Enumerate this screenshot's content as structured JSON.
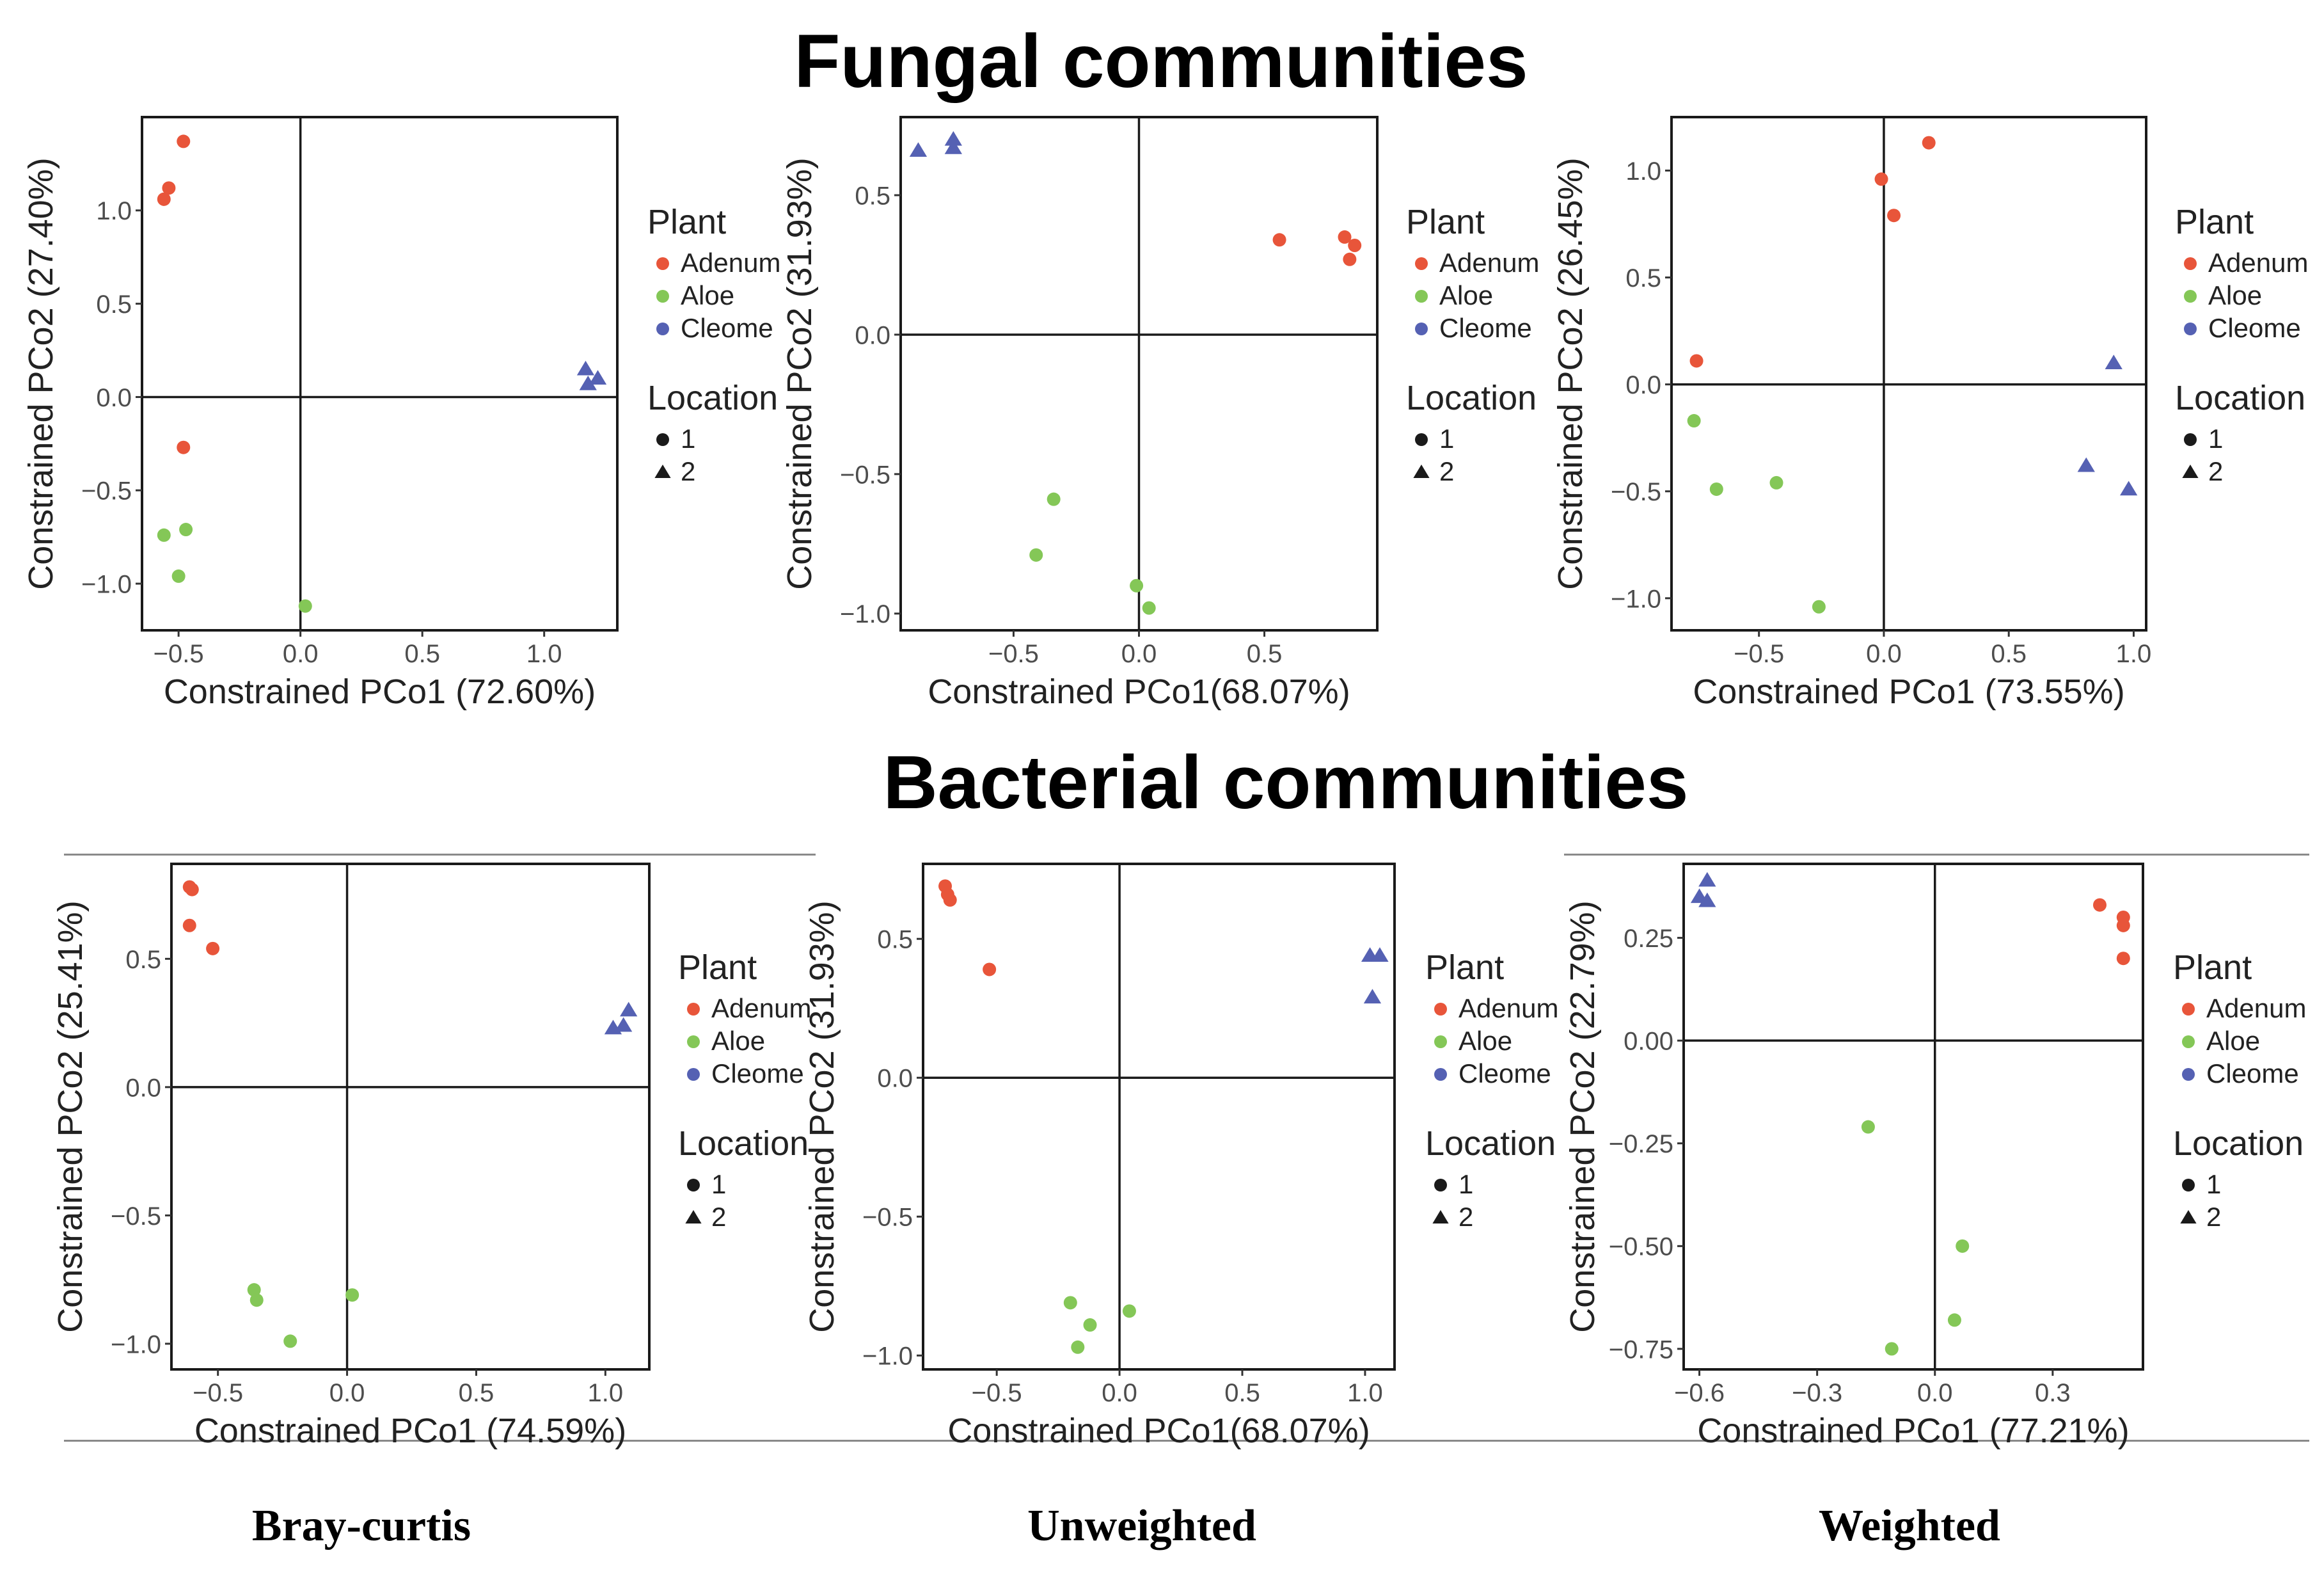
{
  "titles": {
    "fungal": "Fungal communities",
    "bacterial": "Bacterial communities"
  },
  "column_labels": [
    "Bray-curtis",
    "Unweighted",
    "Weighted"
  ],
  "legend": {
    "plant_title": "Plant",
    "plant_items": [
      {
        "label": "Adenum",
        "color": "#e8553a"
      },
      {
        "label": "Aloe",
        "color": "#84c757"
      },
      {
        "label": "Cleome",
        "color": "#5561b3"
      }
    ],
    "location_title": "Location",
    "location_items": [
      {
        "label": "1",
        "shape": "circle"
      },
      {
        "label": "2",
        "shape": "triangle"
      }
    ]
  },
  "colors": {
    "Adenum": "#e8553a",
    "Aloe": "#84c757",
    "Cleome": "#5561b3"
  },
  "chart_data": [
    {
      "type": "scatter",
      "title": "Fungal communities",
      "metric": "Bray-curtis",
      "xlabel": "Constrained PCo1 (72.60%)",
      "ylabel": "Constrained PCo2 (27.40%)",
      "xlim": [
        -0.65,
        1.3
      ],
      "ylim": [
        -1.25,
        1.5
      ],
      "xticks": [
        -0.5,
        0.0,
        0.5,
        1.0
      ],
      "xtick_labels": [
        "−0.5",
        "0.0",
        "0.5",
        "1.0"
      ],
      "yticks": [
        -1.0,
        -0.5,
        0.0,
        0.5,
        1.0
      ],
      "ytick_labels": [
        "−1.0",
        "−0.5",
        "0.0",
        "0.5",
        "1.0"
      ],
      "points": [
        {
          "x": -0.48,
          "y": 1.37,
          "plant": "Adenum",
          "location": 1
        },
        {
          "x": -0.54,
          "y": 1.12,
          "plant": "Adenum",
          "location": 1
        },
        {
          "x": -0.56,
          "y": 1.06,
          "plant": "Adenum",
          "location": 1
        },
        {
          "x": -0.48,
          "y": -0.27,
          "plant": "Adenum",
          "location": 1
        },
        {
          "x": -0.56,
          "y": -0.74,
          "plant": "Aloe",
          "location": 1
        },
        {
          "x": -0.47,
          "y": -0.71,
          "plant": "Aloe",
          "location": 1
        },
        {
          "x": -0.5,
          "y": -0.96,
          "plant": "Aloe",
          "location": 1
        },
        {
          "x": 0.02,
          "y": -1.12,
          "plant": "Aloe",
          "location": 1
        },
        {
          "x": 1.17,
          "y": 0.15,
          "plant": "Cleome",
          "location": 2
        },
        {
          "x": 1.22,
          "y": 0.1,
          "plant": "Cleome",
          "location": 2
        },
        {
          "x": 1.18,
          "y": 0.07,
          "plant": "Cleome",
          "location": 2
        }
      ]
    },
    {
      "type": "scatter",
      "title": "Fungal communities",
      "metric": "Unweighted",
      "xlabel": "Constrained PCo1(68.07%)",
      "ylabel": "Constrained PCo2 (31.93%)",
      "xlim": [
        -0.95,
        0.95
      ],
      "ylim": [
        -1.06,
        0.78
      ],
      "xticks": [
        -0.5,
        0.0,
        0.5
      ],
      "xtick_labels": [
        "−0.5",
        "0.0",
        "0.5"
      ],
      "yticks": [
        -1.0,
        -0.5,
        0.0,
        0.5
      ],
      "ytick_labels": [
        "−1.0",
        "−0.5",
        "0.0",
        "0.5"
      ],
      "points": [
        {
          "x": -0.88,
          "y": 0.66,
          "plant": "Cleome",
          "location": 2
        },
        {
          "x": -0.74,
          "y": 0.7,
          "plant": "Cleome",
          "location": 2
        },
        {
          "x": -0.74,
          "y": 0.67,
          "plant": "Cleome",
          "location": 2
        },
        {
          "x": 0.56,
          "y": 0.34,
          "plant": "Adenum",
          "location": 1
        },
        {
          "x": 0.82,
          "y": 0.35,
          "plant": "Adenum",
          "location": 1
        },
        {
          "x": 0.86,
          "y": 0.32,
          "plant": "Adenum",
          "location": 1
        },
        {
          "x": 0.84,
          "y": 0.27,
          "plant": "Adenum",
          "location": 1
        },
        {
          "x": -0.34,
          "y": -0.59,
          "plant": "Aloe",
          "location": 1
        },
        {
          "x": -0.41,
          "y": -0.79,
          "plant": "Aloe",
          "location": 1
        },
        {
          "x": -0.01,
          "y": -0.9,
          "plant": "Aloe",
          "location": 1
        },
        {
          "x": 0.04,
          "y": -0.98,
          "plant": "Aloe",
          "location": 1
        }
      ]
    },
    {
      "type": "scatter",
      "title": "Fungal communities",
      "metric": "Weighted",
      "xlabel": "Constrained PCo1 (73.55%)",
      "ylabel": "Constrained PCo2 (26.45%)",
      "xlim": [
        -0.85,
        1.05
      ],
      "ylim": [
        -1.15,
        1.25
      ],
      "xticks": [
        -0.5,
        0.0,
        0.5,
        1.0
      ],
      "xtick_labels": [
        "−0.5",
        "0.0",
        "0.5",
        "1.0"
      ],
      "yticks": [
        -1.0,
        -0.5,
        0.0,
        0.5,
        1.0
      ],
      "ytick_labels": [
        "−1.0",
        "−0.5",
        "0.0",
        "0.5",
        "1.0"
      ],
      "points": [
        {
          "x": 0.18,
          "y": 1.13,
          "plant": "Adenum",
          "location": 1
        },
        {
          "x": -0.01,
          "y": 0.96,
          "plant": "Adenum",
          "location": 1
        },
        {
          "x": 0.04,
          "y": 0.79,
          "plant": "Adenum",
          "location": 1
        },
        {
          "x": -0.75,
          "y": 0.11,
          "plant": "Adenum",
          "location": 1
        },
        {
          "x": -0.76,
          "y": -0.17,
          "plant": "Aloe",
          "location": 1
        },
        {
          "x": -0.67,
          "y": -0.49,
          "plant": "Aloe",
          "location": 1
        },
        {
          "x": -0.43,
          "y": -0.46,
          "plant": "Aloe",
          "location": 1
        },
        {
          "x": -0.26,
          "y": -1.04,
          "plant": "Aloe",
          "location": 1
        },
        {
          "x": 0.92,
          "y": 0.1,
          "plant": "Cleome",
          "location": 2
        },
        {
          "x": 0.81,
          "y": -0.38,
          "plant": "Cleome",
          "location": 2
        },
        {
          "x": 0.98,
          "y": -0.49,
          "plant": "Cleome",
          "location": 2
        }
      ]
    },
    {
      "type": "scatter",
      "title": "Bacterial communities",
      "metric": "Bray-curtis",
      "xlabel": "Constrained PCo1 (74.59%)",
      "ylabel": "Constrained PCo2 (25.41%)",
      "xlim": [
        -0.68,
        1.17
      ],
      "ylim": [
        -1.1,
        0.87
      ],
      "xticks": [
        -0.5,
        0.0,
        0.5,
        1.0
      ],
      "xtick_labels": [
        "−0.5",
        "0.0",
        "0.5",
        "1.0"
      ],
      "yticks": [
        -1.0,
        -0.5,
        0.0,
        0.5
      ],
      "ytick_labels": [
        "−1.0",
        "−0.5",
        "0.0",
        "0.5"
      ],
      "points": [
        {
          "x": -0.61,
          "y": 0.78,
          "plant": "Adenum",
          "location": 1
        },
        {
          "x": -0.6,
          "y": 0.77,
          "plant": "Adenum",
          "location": 1
        },
        {
          "x": -0.61,
          "y": 0.63,
          "plant": "Adenum",
          "location": 1
        },
        {
          "x": -0.52,
          "y": 0.54,
          "plant": "Adenum",
          "location": 1
        },
        {
          "x": 1.09,
          "y": 0.3,
          "plant": "Cleome",
          "location": 2
        },
        {
          "x": 1.03,
          "y": 0.23,
          "plant": "Cleome",
          "location": 2
        },
        {
          "x": 1.07,
          "y": 0.24,
          "plant": "Cleome",
          "location": 2
        },
        {
          "x": -0.36,
          "y": -0.79,
          "plant": "Aloe",
          "location": 1
        },
        {
          "x": -0.35,
          "y": -0.83,
          "plant": "Aloe",
          "location": 1
        },
        {
          "x": 0.02,
          "y": -0.81,
          "plant": "Aloe",
          "location": 1
        },
        {
          "x": -0.22,
          "y": -0.99,
          "plant": "Aloe",
          "location": 1
        }
      ]
    },
    {
      "type": "scatter",
      "title": "Bacterial communities",
      "metric": "Unweighted",
      "xlabel": "Constrained PCo1(68.07%)",
      "ylabel": "Constrained PCo2 (31.93%)",
      "xlim": [
        -0.8,
        1.12
      ],
      "ylim": [
        -1.05,
        0.77
      ],
      "xticks": [
        -0.5,
        0.0,
        0.5,
        1.0
      ],
      "xtick_labels": [
        "−0.5",
        "0.0",
        "0.5",
        "1.0"
      ],
      "yticks": [
        -1.0,
        -0.5,
        0.0,
        0.5
      ],
      "ytick_labels": [
        "−1.0",
        "−0.5",
        "0.0",
        "0.5"
      ],
      "points": [
        {
          "x": -0.71,
          "y": 0.69,
          "plant": "Adenum",
          "location": 1
        },
        {
          "x": -0.7,
          "y": 0.66,
          "plant": "Adenum",
          "location": 1
        },
        {
          "x": -0.69,
          "y": 0.64,
          "plant": "Adenum",
          "location": 1
        },
        {
          "x": -0.53,
          "y": 0.39,
          "plant": "Adenum",
          "location": 1
        },
        {
          "x": 1.02,
          "y": 0.44,
          "plant": "Cleome",
          "location": 2
        },
        {
          "x": 1.06,
          "y": 0.44,
          "plant": "Cleome",
          "location": 2
        },
        {
          "x": 1.03,
          "y": 0.29,
          "plant": "Cleome",
          "location": 2
        },
        {
          "x": -0.2,
          "y": -0.81,
          "plant": "Aloe",
          "location": 1
        },
        {
          "x": -0.12,
          "y": -0.89,
          "plant": "Aloe",
          "location": 1
        },
        {
          "x": -0.17,
          "y": -0.97,
          "plant": "Aloe",
          "location": 1
        },
        {
          "x": 0.04,
          "y": -0.84,
          "plant": "Aloe",
          "location": 1
        }
      ]
    },
    {
      "type": "scatter",
      "title": "Bacterial communities",
      "metric": "Weighted",
      "xlabel": "Constrained PCo1 (77.21%)",
      "ylabel": "Constrained PCo2 (22.79%)",
      "xlim": [
        -0.64,
        0.53
      ],
      "ylim": [
        -0.8,
        0.43
      ],
      "xticks": [
        -0.6,
        -0.3,
        0.0,
        0.3
      ],
      "xtick_labels": [
        "−0.6",
        "−0.3",
        "0.0",
        "0.3"
      ],
      "yticks": [
        -0.75,
        -0.5,
        -0.25,
        0.0,
        0.25
      ],
      "ytick_labels": [
        "−0.75",
        "−0.50",
        "−0.25",
        "0.00",
        "0.25"
      ],
      "points": [
        {
          "x": -0.58,
          "y": 0.39,
          "plant": "Cleome",
          "location": 2
        },
        {
          "x": -0.6,
          "y": 0.35,
          "plant": "Cleome",
          "location": 2
        },
        {
          "x": -0.58,
          "y": 0.34,
          "plant": "Cleome",
          "location": 2
        },
        {
          "x": 0.42,
          "y": 0.33,
          "plant": "Adenum",
          "location": 1
        },
        {
          "x": 0.48,
          "y": 0.3,
          "plant": "Adenum",
          "location": 1
        },
        {
          "x": 0.48,
          "y": 0.28,
          "plant": "Adenum",
          "location": 1
        },
        {
          "x": 0.48,
          "y": 0.2,
          "plant": "Adenum",
          "location": 1
        },
        {
          "x": -0.17,
          "y": -0.21,
          "plant": "Aloe",
          "location": 1
        },
        {
          "x": 0.07,
          "y": -0.5,
          "plant": "Aloe",
          "location": 1
        },
        {
          "x": 0.05,
          "y": -0.68,
          "plant": "Aloe",
          "location": 1
        },
        {
          "x": -0.11,
          "y": -0.75,
          "plant": "Aloe",
          "location": 1
        }
      ]
    }
  ]
}
